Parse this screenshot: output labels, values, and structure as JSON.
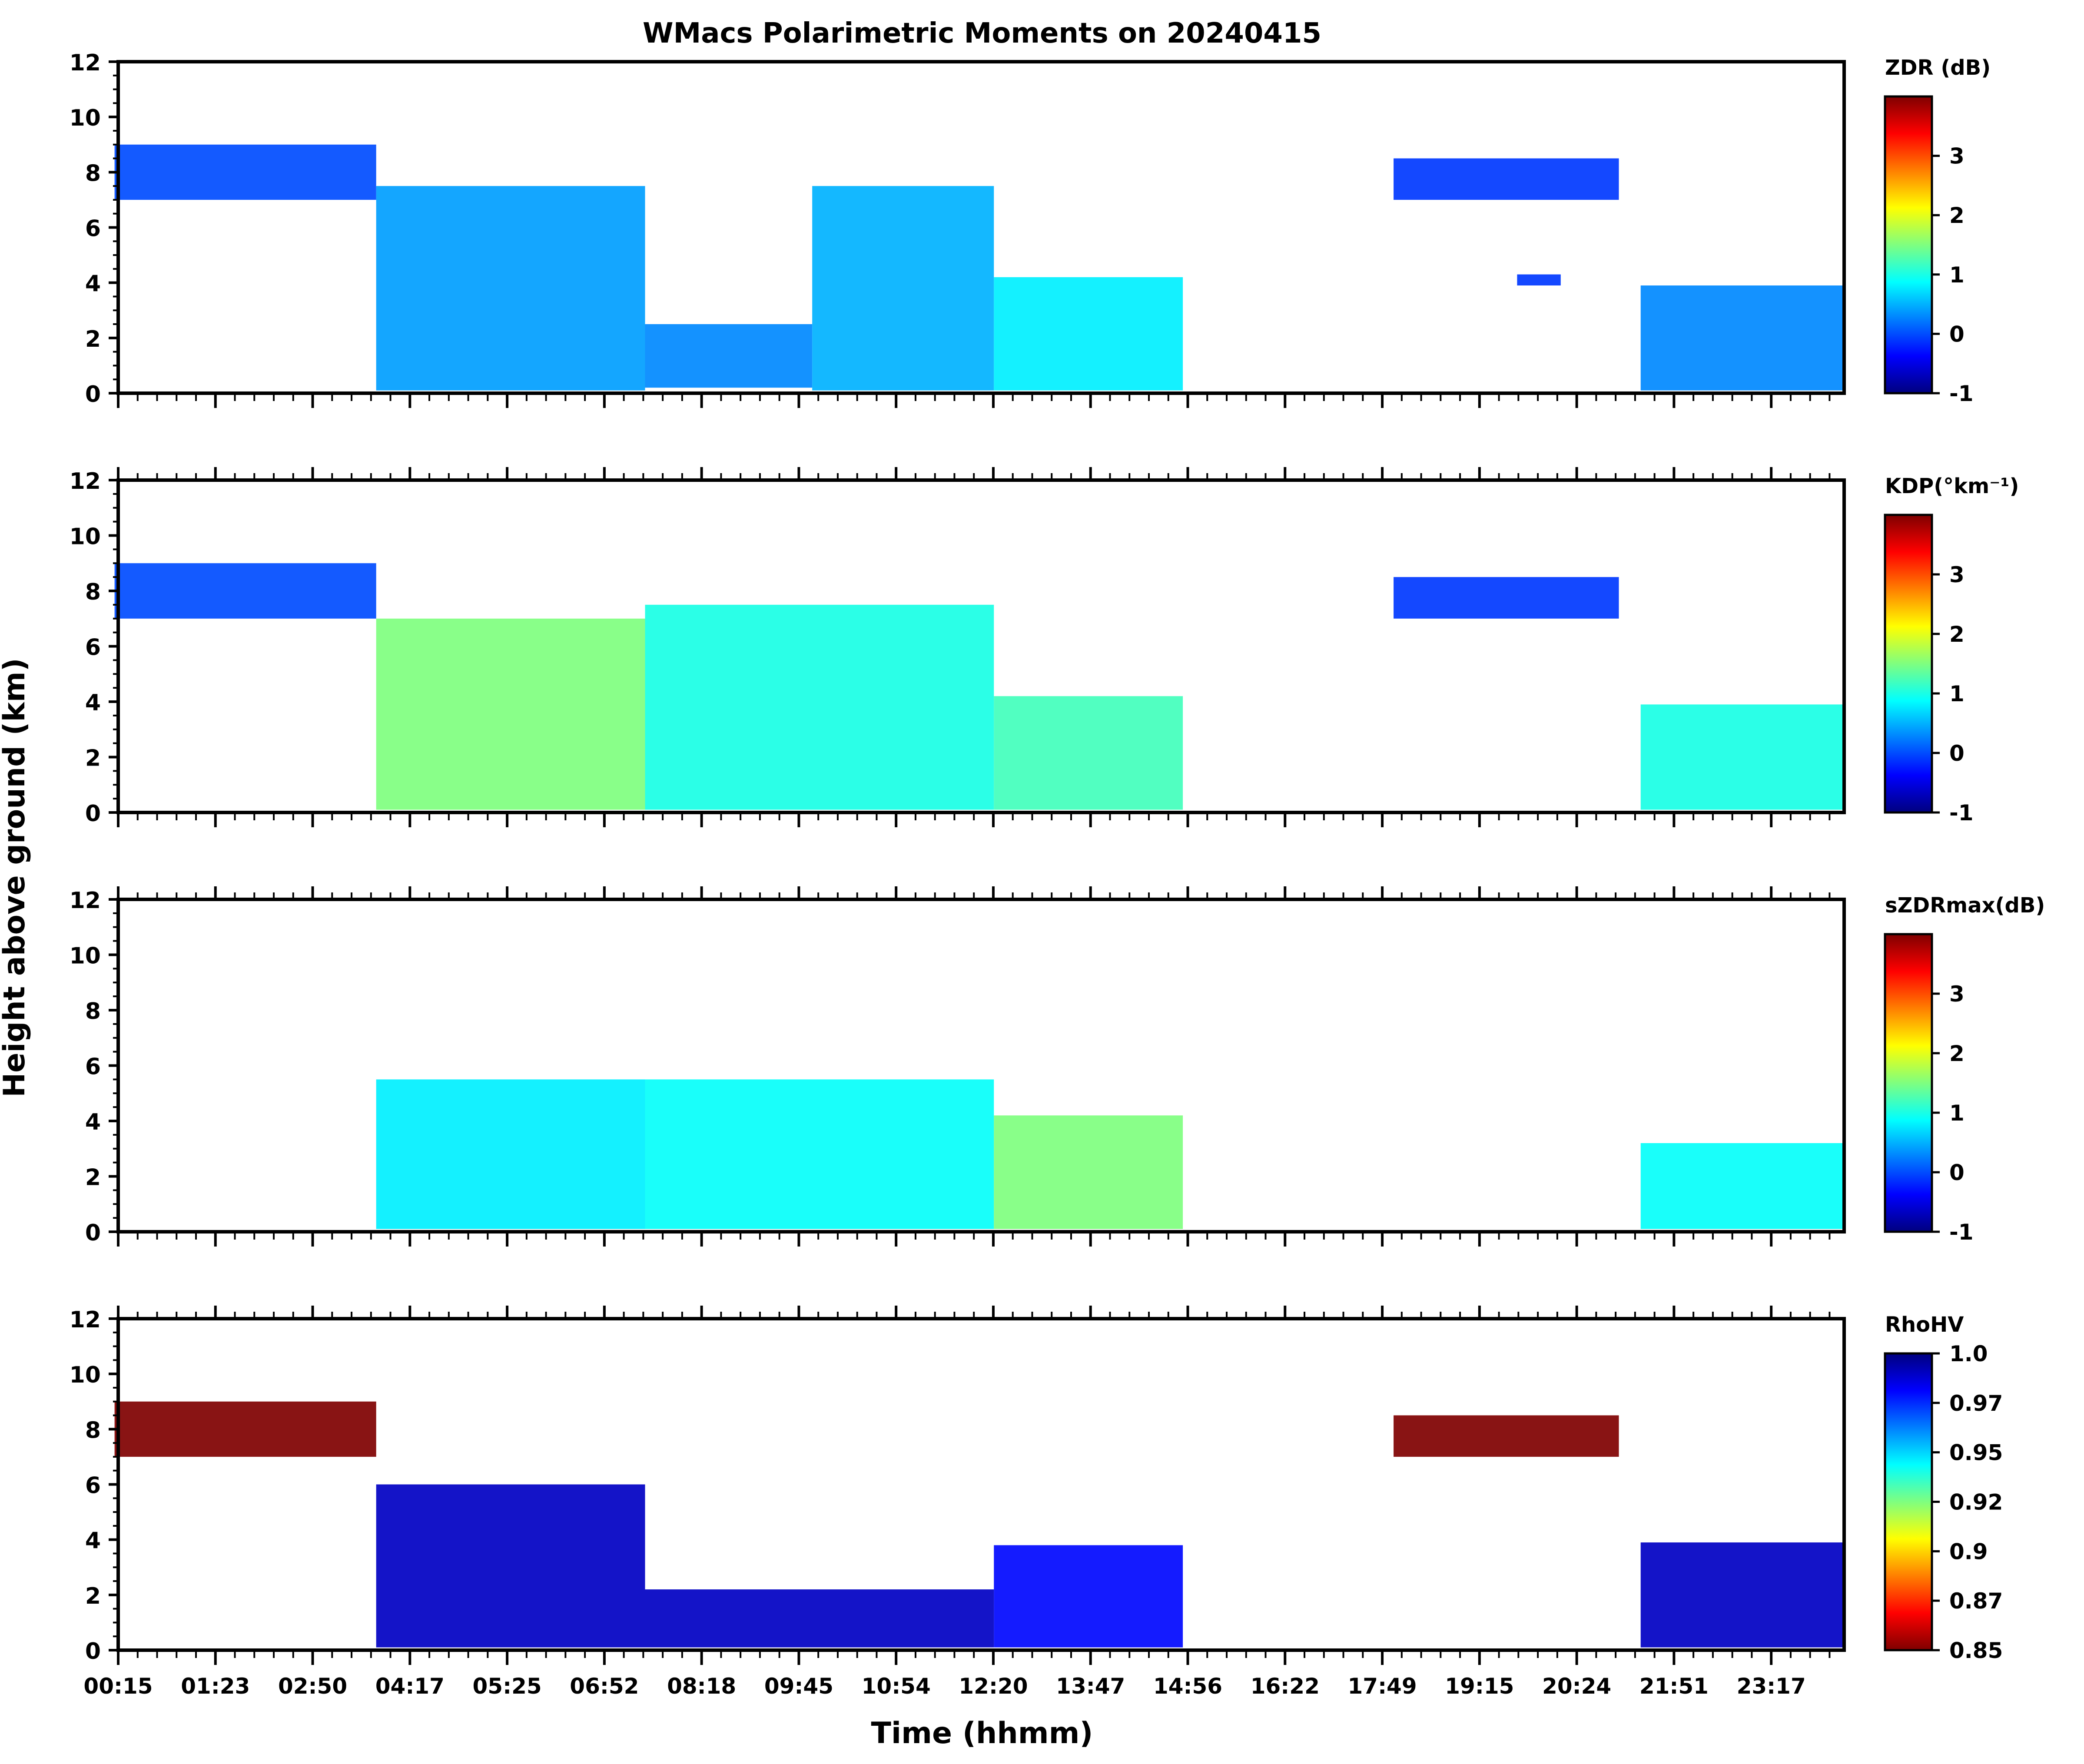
{
  "figure": {
    "title": "WMacs Polarimetric Moments on 20240415",
    "ylabel": "Height above ground (km)",
    "xlabel": "Time (hhmm)"
  },
  "chart_data": [
    {
      "type": "heatmap",
      "variable": "ZDR (dB)",
      "colorbar_label": "ZDR (dB)",
      "colorbar_ticks": [
        "3",
        "2",
        "1",
        "0",
        "-1"
      ],
      "colorbar_range": [
        -1,
        4
      ],
      "colormap": "jet",
      "ylim": [
        0,
        12
      ],
      "y_ticks": [
        "12",
        "10",
        "8",
        "6",
        "4",
        "2",
        "0"
      ],
      "x_ticks": [],
      "background_value": 0,
      "features": [
        {
          "t": [
            0.2,
            3.8
          ],
          "h": [
            7.0,
            9.0
          ],
          "v": 0.0
        },
        {
          "t": [
            3.8,
            7.5
          ],
          "h": [
            0.1,
            7.5
          ],
          "v": 0.4
        },
        {
          "t": [
            7.5,
            9.8
          ],
          "h": [
            0.2,
            2.5
          ],
          "v": 0.3
        },
        {
          "t": [
            9.8,
            12.3
          ],
          "h": [
            0.1,
            7.5
          ],
          "v": 0.5
        },
        {
          "t": [
            12.3,
            14.9
          ],
          "h": [
            0.1,
            4.2
          ],
          "v": 0.8
        },
        {
          "t": [
            17.8,
            20.9
          ],
          "h": [
            7.0,
            8.5
          ],
          "v": -0.1
        },
        {
          "t": [
            19.5,
            20.1
          ],
          "h": [
            3.9,
            4.3
          ],
          "v": -0.1
        },
        {
          "t": [
            21.2,
            24.0
          ],
          "h": [
            0.1,
            3.9
          ],
          "v": 0.3
        }
      ]
    },
    {
      "type": "heatmap",
      "variable": "KDP",
      "colorbar_label": "KDP(°km⁻¹)",
      "colorbar_ticks": [
        "3",
        "2",
        "1",
        "0",
        "-1"
      ],
      "colorbar_range": [
        -1,
        4
      ],
      "colormap": "jet",
      "ylim": [
        0,
        12
      ],
      "y_ticks": [
        "12",
        "10",
        "8",
        "6",
        "4",
        "2",
        "0"
      ],
      "x_ticks": [],
      "background_value": 0,
      "features": [
        {
          "t": [
            0.2,
            3.8
          ],
          "h": [
            7.0,
            9.0
          ],
          "v": 0.0
        },
        {
          "t": [
            3.8,
            7.5
          ],
          "h": [
            0.1,
            7.0
          ],
          "v": 1.5
        },
        {
          "t": [
            7.5,
            12.3
          ],
          "h": [
            0.1,
            7.5
          ],
          "v": 1.0
        },
        {
          "t": [
            12.3,
            14.9
          ],
          "h": [
            0.1,
            4.2
          ],
          "v": 1.2
        },
        {
          "t": [
            17.8,
            20.9
          ],
          "h": [
            7.0,
            8.5
          ],
          "v": -0.1
        },
        {
          "t": [
            21.2,
            24.0
          ],
          "h": [
            0.1,
            3.9
          ],
          "v": 1.0
        }
      ]
    },
    {
      "type": "heatmap",
      "variable": "sZDRmax (dB)",
      "colorbar_label": "sZDRmax(dB)",
      "colorbar_ticks": [
        "3",
        "2",
        "1",
        "0",
        "-1"
      ],
      "colorbar_range": [
        -1,
        4
      ],
      "colormap": "jet",
      "ylim": [
        0,
        12
      ],
      "y_ticks": [
        "12",
        "10",
        "8",
        "6",
        "4",
        "2",
        "0"
      ],
      "x_ticks": [],
      "background_value": 0.8,
      "features": [
        {
          "t": [
            3.8,
            7.5
          ],
          "h": [
            0.1,
            5.5
          ],
          "v": 0.8
        },
        {
          "t": [
            7.5,
            12.3
          ],
          "h": [
            0.1,
            5.5
          ],
          "v": 0.9
        },
        {
          "t": [
            12.3,
            14.9
          ],
          "h": [
            0.1,
            4.2
          ],
          "v": 1.5
        },
        {
          "t": [
            21.2,
            24.0
          ],
          "h": [
            0.1,
            3.2
          ],
          "v": 0.9
        }
      ]
    },
    {
      "type": "heatmap",
      "variable": "RhoHV",
      "colorbar_label": "RhoHV",
      "colorbar_ticks": [
        "1.0",
        "0.97",
        "0.95",
        "0.92",
        "0.9",
        "0.87",
        "0.85"
      ],
      "colorbar_range": [
        0.85,
        1.0
      ],
      "colormap": "jet_r",
      "ylim": [
        0,
        12
      ],
      "y_ticks": [
        "12",
        "10",
        "8",
        "6",
        "4",
        "2",
        "0"
      ],
      "x_ticks": [
        "00:15",
        "01:23",
        "02:50",
        "04:17",
        "05:25",
        "06:52",
        "08:18",
        "09:45",
        "10:54",
        "12:20",
        "13:47",
        "14:56",
        "16:22",
        "17:49",
        "19:15",
        "20:24",
        "21:51",
        "23:17"
      ],
      "background_value": 0.85,
      "features": [
        {
          "t": [
            0.2,
            3.8
          ],
          "h": [
            7.0,
            9.0
          ],
          "v": 0.85
        },
        {
          "t": [
            3.8,
            7.5
          ],
          "h": [
            0.1,
            6.0
          ],
          "v": 0.99
        },
        {
          "t": [
            7.5,
            12.3
          ],
          "h": [
            0.1,
            2.2
          ],
          "v": 0.99
        },
        {
          "t": [
            12.3,
            14.9
          ],
          "h": [
            0.1,
            3.8
          ],
          "v": 0.98
        },
        {
          "t": [
            17.8,
            20.9
          ],
          "h": [
            7.0,
            8.5
          ],
          "v": 0.85
        },
        {
          "t": [
            21.2,
            24.0
          ],
          "h": [
            0.1,
            3.9
          ],
          "v": 0.99
        }
      ]
    }
  ],
  "colors": {
    "axis": "#000000",
    "jet": [
      "#00007f",
      "#0000ff",
      "#007fff",
      "#00ffff",
      "#7fff7f",
      "#ffff00",
      "#ff7f00",
      "#ff0000",
      "#7f0000"
    ]
  }
}
